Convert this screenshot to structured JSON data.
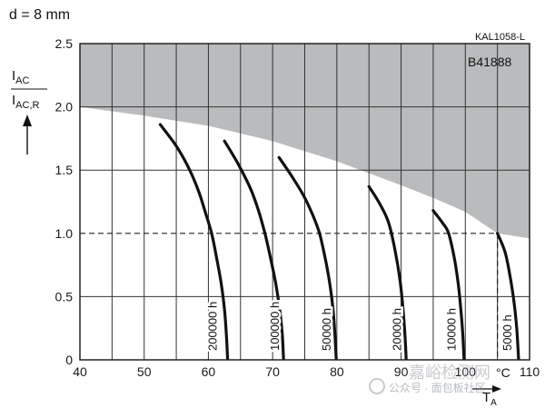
{
  "chart_data": {
    "type": "line",
    "title": "d = 8 mm",
    "ylabel_num_base": "I",
    "ylabel_num_sub": "AC",
    "ylabel_den_base": "I",
    "ylabel_den_sub": "AC,R",
    "xlabel_base": "T",
    "xlabel_sub": "A",
    "x_unit": "°C",
    "code_top_right": "KAL1058-L",
    "code_box": "B41888",
    "xlim": [
      40,
      110
    ],
    "ylim": [
      0,
      2.5
    ],
    "x_ticks": [
      "40",
      "50",
      "60",
      "70",
      "80",
      "90",
      "100",
      "110"
    ],
    "y_ticks": [
      "0",
      "0.5",
      "1.0",
      "1.5",
      "2.0",
      "2.5"
    ],
    "grid": true,
    "reference_line": {
      "y": 1.0,
      "x_end": 105,
      "style": "dashed"
    },
    "reference_drop": {
      "x": 105,
      "y_from": 1.0,
      "y_to": 0,
      "style": "dashed"
    },
    "shaded_region": {
      "description": "gray region above boundary curve",
      "boundary": [
        [
          40,
          2.0
        ],
        [
          50,
          1.93
        ],
        [
          60,
          1.85
        ],
        [
          70,
          1.73
        ],
        [
          80,
          1.57
        ],
        [
          90,
          1.38
        ],
        [
          95,
          1.28
        ],
        [
          100,
          1.17
        ],
        [
          105,
          1.0
        ],
        [
          110,
          0.96
        ]
      ]
    },
    "series": [
      {
        "name": "200000 h",
        "points": [
          [
            52.5,
            1.86
          ],
          [
            55,
            1.69
          ],
          [
            57,
            1.51
          ],
          [
            58.5,
            1.33
          ],
          [
            59.5,
            1.17
          ],
          [
            60.5,
            1.0
          ],
          [
            61.3,
            0.8
          ],
          [
            62,
            0.6
          ],
          [
            62.5,
            0.4
          ],
          [
            62.8,
            0.2
          ],
          [
            63,
            0
          ]
        ]
      },
      {
        "name": "100000 h",
        "points": [
          [
            62.5,
            1.73
          ],
          [
            64.5,
            1.56
          ],
          [
            66.5,
            1.36
          ],
          [
            67.8,
            1.18
          ],
          [
            68.8,
            1.0
          ],
          [
            69.7,
            0.8
          ],
          [
            70.5,
            0.6
          ],
          [
            71.1,
            0.4
          ],
          [
            71.5,
            0.2
          ],
          [
            71.7,
            0
          ]
        ]
      },
      {
        "name": "50000 h",
        "points": [
          [
            71,
            1.6
          ],
          [
            73,
            1.45
          ],
          [
            74.8,
            1.3
          ],
          [
            76.2,
            1.15
          ],
          [
            77.3,
            1.0
          ],
          [
            78.2,
            0.8
          ],
          [
            78.9,
            0.6
          ],
          [
            79.4,
            0.4
          ],
          [
            79.7,
            0.2
          ],
          [
            79.9,
            0
          ]
        ]
      },
      {
        "name": "20000 h",
        "points": [
          [
            85,
            1.37
          ],
          [
            86.5,
            1.25
          ],
          [
            87.8,
            1.12
          ],
          [
            88.5,
            1.0
          ],
          [
            89.3,
            0.8
          ],
          [
            89.9,
            0.6
          ],
          [
            90.3,
            0.4
          ],
          [
            90.6,
            0.2
          ],
          [
            90.8,
            0
          ]
        ]
      },
      {
        "name": "10000 h",
        "points": [
          [
            95,
            1.18
          ],
          [
            96.5,
            1.08
          ],
          [
            97.4,
            1.0
          ],
          [
            98.3,
            0.8
          ],
          [
            98.9,
            0.6
          ],
          [
            99.3,
            0.4
          ],
          [
            99.6,
            0.2
          ],
          [
            99.8,
            0
          ]
        ]
      },
      {
        "name": "5000 h",
        "points": [
          [
            105,
            1.0
          ],
          [
            106.2,
            0.85
          ],
          [
            107,
            0.65
          ],
          [
            107.6,
            0.45
          ],
          [
            108,
            0.25
          ],
          [
            108.3,
            0
          ]
        ]
      }
    ],
    "label_positions_x": [
      61.3,
      71.0,
      79.0,
      90.0,
      98.5,
      107.2
    ]
  },
  "watermark": {
    "line1": "嘉峪检测网",
    "line2": "公众号 · 面包板社区"
  }
}
